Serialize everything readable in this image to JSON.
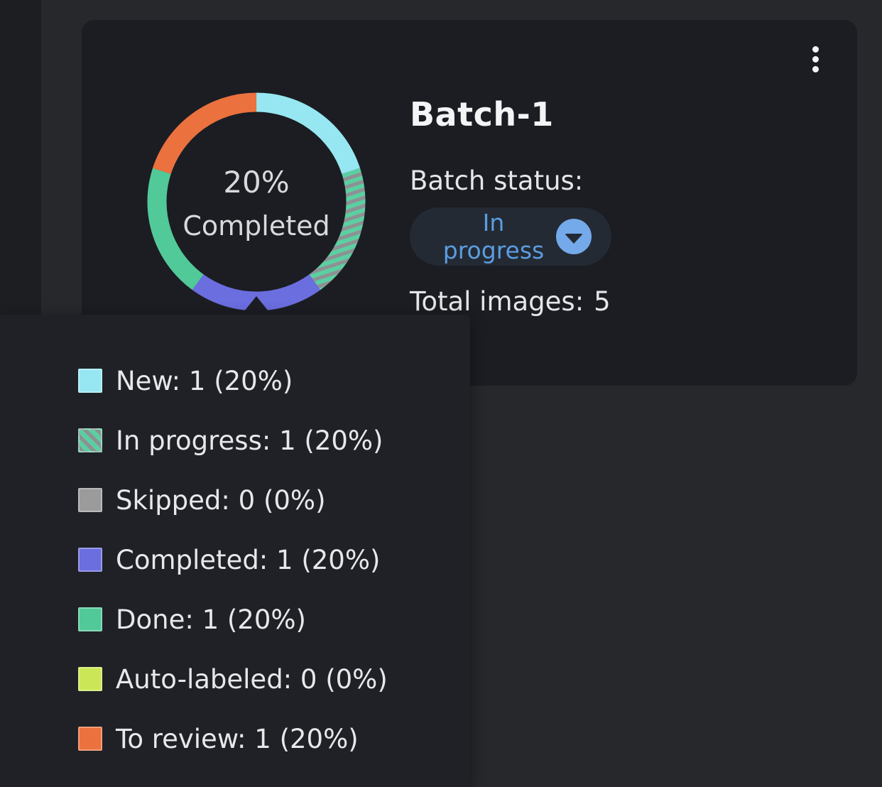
{
  "colors": {
    "page_bg": "#26282c",
    "left_strip": "#1c1e22",
    "card_bg": "#1b1d22",
    "tooltip_bg": "#1f2126",
    "accent_blue": "#5b9de2",
    "pill_bg": "#242a33",
    "chevron_circle_bg": "#74a9ea",
    "text_primary": "#f3f4f6",
    "text_secondary": "#e4e6e8",
    "donut_center_text": "#d7d9db"
  },
  "card": {
    "title": "Batch-1",
    "status_label": "Batch status:",
    "status_value": "In progress",
    "total_images_label": "Total images:",
    "total_images_value": "5",
    "menu_icon": "kebab-menu"
  },
  "donut": {
    "center_line1": "20%",
    "center_line2": "Completed",
    "stripe_teal": "#5ccfa2",
    "stripe_gray": "#8d9193"
  },
  "legend": {
    "items": [
      {
        "label": "New",
        "text": "New: 1 (20%)",
        "color": "#96e7f1",
        "striped": false
      },
      {
        "label": "In progress",
        "text": "In progress: 1 (20%)",
        "color": "#5ccfa2",
        "striped": true
      },
      {
        "label": "Skipped",
        "text": "Skipped: 0 (0%)",
        "color": "#9b9b9b",
        "striped": false
      },
      {
        "label": "Completed",
        "text": "Completed: 1 (20%)",
        "color": "#6a6ede",
        "striped": false
      },
      {
        "label": "Done",
        "text": "Done: 1 (20%)",
        "color": "#52c998",
        "striped": false
      },
      {
        "label": "Auto-labeled",
        "text": "Auto-labeled: 0 (0%)",
        "color": "#cbe757",
        "striped": false
      },
      {
        "label": "To review",
        "text": "To review: 1 (20%)",
        "color": "#eb713f",
        "striped": false
      }
    ]
  },
  "chart_data": {
    "type": "pie",
    "subtype": "donut",
    "title": "20% Completed",
    "categories": [
      "New",
      "In progress",
      "Skipped",
      "Completed",
      "Done",
      "Auto-labeled",
      "To review"
    ],
    "values": [
      1,
      1,
      0,
      1,
      1,
      0,
      1
    ],
    "percentages": [
      20,
      20,
      0,
      20,
      20,
      0,
      20
    ],
    "total": 5,
    "start_angle_deg": -90,
    "direction": "clockwise",
    "legend_position": "bottom-left-tooltip",
    "center_label": [
      "20%",
      "Completed"
    ]
  }
}
